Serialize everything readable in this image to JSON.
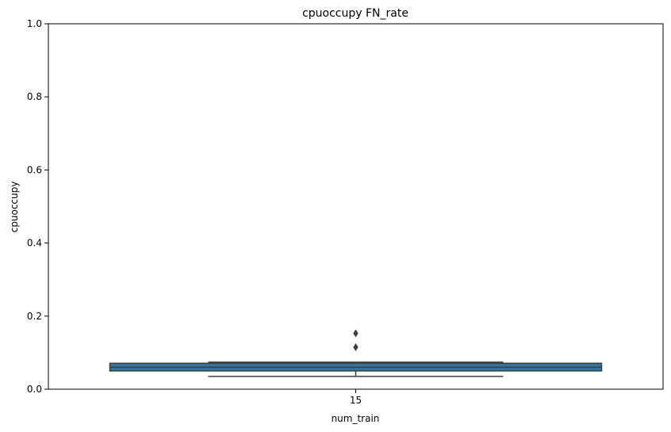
{
  "chart_data": {
    "type": "box",
    "title": "cpuoccupy FN_rate",
    "xlabel": "num_train",
    "ylabel": "cpuoccupy",
    "ylim": [
      0,
      1
    ],
    "yticks": [
      0.0,
      0.2,
      0.4,
      0.6,
      0.8,
      1.0
    ],
    "ytick_labels": [
      "0.0",
      "0.2",
      "0.4",
      "0.6",
      "0.8",
      "1.0"
    ],
    "categories": [
      "15"
    ],
    "boxes": [
      {
        "category": "15",
        "q1": 0.05,
        "median": 0.06,
        "q3": 0.071,
        "whisker_low": 0.035,
        "whisker_high": 0.074,
        "outliers": [
          0.115,
          0.153
        ]
      }
    ],
    "colors": {
      "box_fill": "#3274a1",
      "box_edge": "#3f3f3f",
      "outlier": "#3f3f3f"
    }
  }
}
